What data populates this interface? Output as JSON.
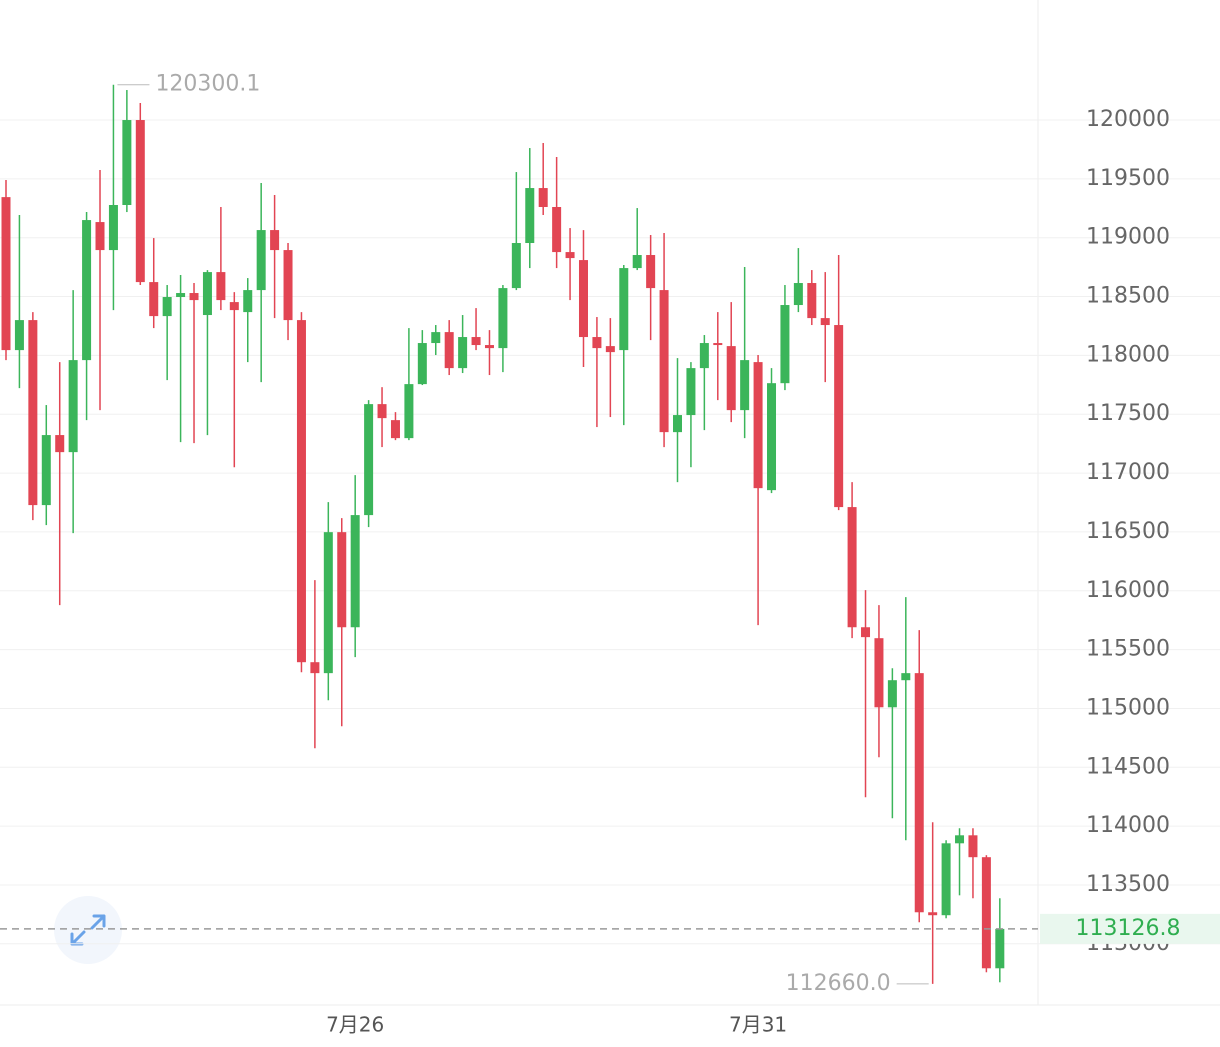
{
  "chart_data": {
    "type": "candlestick",
    "categories": [
      null,
      null,
      null,
      null,
      null,
      null,
      null,
      null,
      null,
      null,
      null,
      null,
      null,
      null,
      null,
      null,
      null,
      null,
      null,
      null,
      null,
      null,
      null,
      null,
      null,
      null,
      "7月26",
      null,
      null,
      null,
      null,
      null,
      null,
      null,
      null,
      null,
      null,
      null,
      null,
      null,
      null,
      null,
      null,
      null,
      null,
      null,
      null,
      null,
      null,
      null,
      null,
      null,
      null,
      null,
      null,
      null,
      "7月31",
      null,
      null,
      null,
      null,
      null,
      null,
      null,
      null,
      null,
      null,
      null,
      null,
      null,
      null,
      null,
      null,
      null,
      null
    ],
    "open": [
      119345,
      118045,
      118300,
      116728,
      117323,
      117178,
      117960,
      119133,
      118895,
      119278,
      120000,
      118623,
      118334,
      118496,
      118530,
      118343,
      118708,
      118453,
      118368,
      118555,
      119065,
      118895,
      118300,
      115393,
      115300,
      116498,
      115690,
      116643,
      117586,
      117450,
      117297,
      117756,
      118105,
      118198,
      117892,
      118156,
      118088,
      118062,
      118572,
      118955,
      119422,
      119261,
      118878,
      118810,
      118156,
      118079,
      118045,
      118742,
      118853,
      118555,
      117348,
      117493,
      117892,
      118105,
      118079,
      117535,
      117943,
      116855,
      117764,
      118428,
      118615,
      118317,
      118258,
      116711,
      115690,
      115597,
      115010,
      115240,
      115300,
      113268,
      113243,
      113854,
      113922,
      113736,
      112792
    ],
    "high": [
      119490,
      119193,
      118368,
      117578,
      117943,
      118555,
      119218,
      119575,
      120300.1,
      120255,
      120145,
      118997,
      118598,
      118683,
      118615,
      118725,
      119261,
      118538,
      118657,
      119465,
      119363,
      118955,
      118368,
      116090,
      116753,
      116617,
      116983,
      117620,
      117730,
      117518,
      118232,
      118215,
      118258,
      118300,
      118343,
      118402,
      118215,
      118598,
      119558,
      119762,
      119805,
      119686,
      119082,
      119065,
      118326,
      118317,
      118768,
      119252,
      119023,
      119040,
      117977,
      117943,
      118173,
      118368,
      118453,
      118751,
      118003,
      117892,
      118598,
      118912,
      118725,
      118708,
      118853,
      116923,
      116005,
      115878,
      115342,
      115946,
      115665,
      114033,
      113880,
      113982,
      113982,
      113753,
      113387
    ],
    "low": [
      117960,
      117722,
      116600,
      116558,
      115878,
      116490,
      117450,
      117535,
      118385,
      119218,
      118598,
      118232,
      117790,
      117263,
      117255,
      117323,
      118385,
      117050,
      117943,
      117773,
      118317,
      118130,
      115308,
      114662,
      115070,
      114849,
      115436,
      116541,
      117221,
      117280,
      117280,
      117748,
      118003,
      117833,
      117850,
      118045,
      117833,
      117858,
      118555,
      118742,
      119193,
      118742,
      118470,
      117901,
      117391,
      117476,
      117408,
      118725,
      118130,
      117221,
      116923,
      117050,
      117365,
      117620,
      117433,
      117297,
      115708,
      116830,
      117705,
      118368,
      118258,
      117773,
      116685,
      115597,
      114245,
      114585,
      114067,
      113880,
      113183,
      112660,
      113217,
      113412,
      113387,
      112758,
      112673
    ],
    "close": [
      118045,
      118300,
      116728,
      117323,
      117178,
      117960,
      119150,
      118895,
      119278,
      120000,
      118623,
      118334,
      118496,
      118530,
      118470,
      118708,
      118470,
      118385,
      118555,
      119065,
      118895,
      118300,
      115393,
      115300,
      116498,
      115690,
      116643,
      117586,
      117467,
      117297,
      117756,
      118105,
      118198,
      117892,
      118156,
      118088,
      118062,
      118572,
      118955,
      119422,
      119261,
      118878,
      118827,
      118156,
      118062,
      118028,
      118742,
      118853,
      118572,
      117348,
      117493,
      117892,
      118105,
      118088,
      117535,
      117960,
      116872,
      117764,
      118428,
      118615,
      118317,
      118258,
      116711,
      115690,
      115606,
      115010,
      115240,
      115300,
      113268,
      113243,
      113854,
      113922,
      113736,
      112792,
      113126.8
    ],
    "up_color": "#3bb55a",
    "down_color": "#e24553",
    "ylim": [
      112480,
      121020
    ],
    "yticks": [
      113000,
      113500,
      114000,
      114500,
      115000,
      115500,
      116000,
      116500,
      117000,
      117500,
      118000,
      118500,
      119000,
      119500,
      120000
    ],
    "grid": true,
    "high_marker": {
      "value": 120300.1,
      "label": "120300.1"
    },
    "low_marker": {
      "value": 112660,
      "label": "112660.0"
    },
    "last_price": 113126.8
  }
}
